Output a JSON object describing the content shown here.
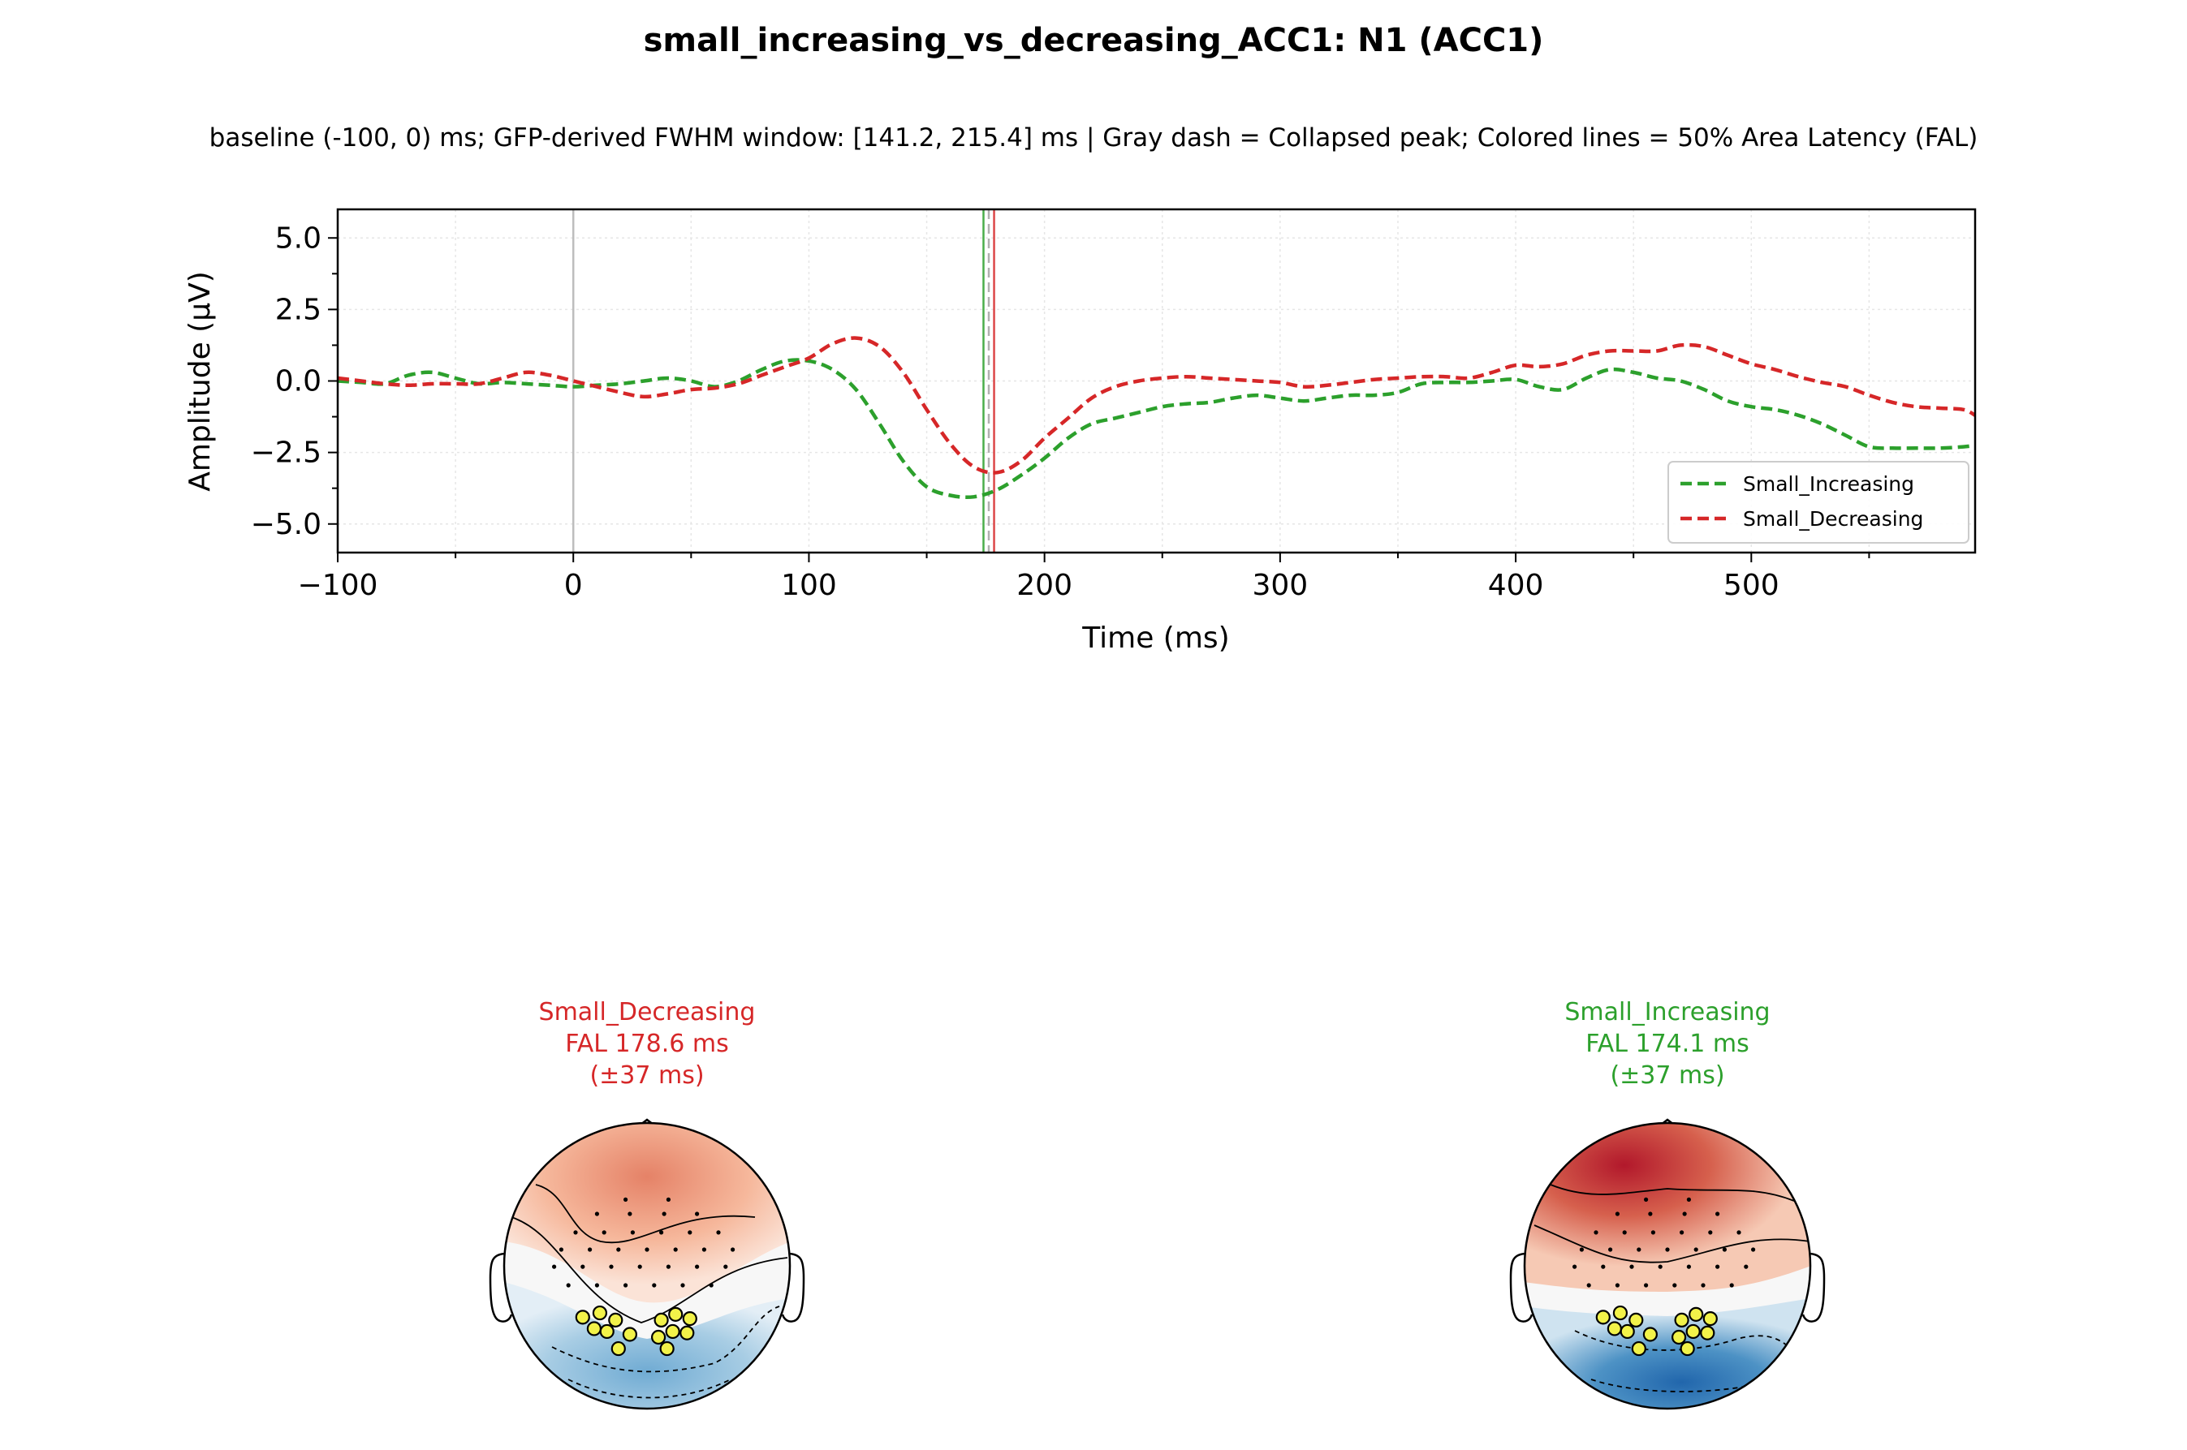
{
  "chart_data": [
    {
      "type": "line",
      "title": "small_increasing_vs_decreasing_ACC1: N1 (ACC1)",
      "subtitle": "baseline (-100, 0) ms; GFP-derived FWHM window: [141.2, 215.4] ms | Gray dash = Collapsed peak; Colored lines = 50% Area Latency (FAL)",
      "xlabel": "Time (ms)",
      "ylabel": "Amplitude (µV)",
      "xlim": [
        -100,
        595
      ],
      "ylim": [
        -6,
        6
      ],
      "xticks": [
        -100,
        0,
        100,
        200,
        300,
        400,
        500
      ],
      "xtick_labels": [
        "−100",
        "0",
        "100",
        "200",
        "300",
        "400",
        "500"
      ],
      "yticks": [
        -5,
        -2.5,
        0,
        2.5,
        5
      ],
      "ytick_labels": [
        "−5.0",
        "−2.5",
        "0.0",
        "2.5",
        "5.0"
      ],
      "grid": true,
      "legend_position": "lower-right",
      "x": [
        -100,
        -90,
        -80,
        -70,
        -60,
        -50,
        -40,
        -30,
        -20,
        -10,
        0,
        10,
        20,
        30,
        40,
        50,
        60,
        70,
        80,
        90,
        100,
        110,
        120,
        130,
        140,
        150,
        160,
        170,
        180,
        190,
        200,
        210,
        220,
        230,
        240,
        250,
        260,
        270,
        280,
        290,
        300,
        310,
        320,
        330,
        340,
        350,
        360,
        370,
        380,
        390,
        400,
        410,
        420,
        430,
        440,
        450,
        460,
        470,
        480,
        490,
        500,
        510,
        520,
        530,
        540,
        550,
        560,
        570,
        580,
        590,
        595
      ],
      "series": [
        {
          "name": "Small_Increasing",
          "color": "#2ca02c",
          "style": "dashed",
          "values": [
            0.0,
            -0.05,
            -0.1,
            0.2,
            0.3,
            0.1,
            -0.1,
            -0.05,
            -0.1,
            -0.15,
            -0.2,
            -0.15,
            -0.1,
            0.0,
            0.1,
            0.0,
            -0.2,
            0.0,
            0.4,
            0.7,
            0.7,
            0.4,
            -0.3,
            -1.5,
            -2.8,
            -3.7,
            -4.0,
            -4.05,
            -3.8,
            -3.3,
            -2.7,
            -2.0,
            -1.5,
            -1.3,
            -1.1,
            -0.9,
            -0.8,
            -0.75,
            -0.6,
            -0.5,
            -0.6,
            -0.7,
            -0.6,
            -0.5,
            -0.5,
            -0.4,
            -0.1,
            -0.05,
            -0.05,
            0.0,
            0.05,
            -0.2,
            -0.3,
            0.1,
            0.4,
            0.3,
            0.1,
            0.0,
            -0.3,
            -0.7,
            -0.9,
            -1.0,
            -1.2,
            -1.5,
            -1.9,
            -2.3,
            -2.35,
            -2.35,
            -2.35,
            -2.3,
            -2.25
          ]
        },
        {
          "name": "Small_Decreasing",
          "color": "#d62728",
          "style": "dashed",
          "values": [
            0.1,
            0.0,
            -0.1,
            -0.15,
            -0.1,
            -0.1,
            -0.1,
            0.1,
            0.3,
            0.2,
            0.0,
            -0.2,
            -0.4,
            -0.55,
            -0.45,
            -0.3,
            -0.25,
            -0.1,
            0.2,
            0.5,
            0.8,
            1.3,
            1.5,
            1.2,
            0.3,
            -1.0,
            -2.2,
            -3.0,
            -3.2,
            -2.8,
            -2.0,
            -1.3,
            -0.6,
            -0.2,
            0.0,
            0.1,
            0.15,
            0.1,
            0.05,
            0.0,
            -0.05,
            -0.2,
            -0.15,
            -0.05,
            0.05,
            0.1,
            0.15,
            0.15,
            0.1,
            0.3,
            0.55,
            0.5,
            0.6,
            0.9,
            1.05,
            1.05,
            1.05,
            1.25,
            1.2,
            0.9,
            0.6,
            0.4,
            0.15,
            -0.05,
            -0.2,
            -0.5,
            -0.75,
            -0.9,
            -0.95,
            -1.0,
            -1.2
          ]
        }
      ],
      "vlines": [
        {
          "x": 0,
          "color": "#bdbdbd",
          "style": "solid"
        },
        {
          "x": 176.35,
          "color": "#b0b0b0",
          "style": "dashed"
        },
        {
          "x": 174.1,
          "color": "#2ca02c",
          "style": "solid"
        },
        {
          "x": 178.6,
          "color": "#d62728",
          "style": "solid"
        }
      ]
    },
    {
      "type": "topomap",
      "label_lines": [
        "Small_Decreasing",
        "FAL 178.6 ms",
        "(±37 ms)"
      ],
      "label_color": "#d62728"
    },
    {
      "type": "topomap",
      "label_lines": [
        "Small_Increasing",
        "FAL 174.1 ms",
        "(±37 ms)"
      ],
      "label_color": "#2ca02c"
    }
  ]
}
